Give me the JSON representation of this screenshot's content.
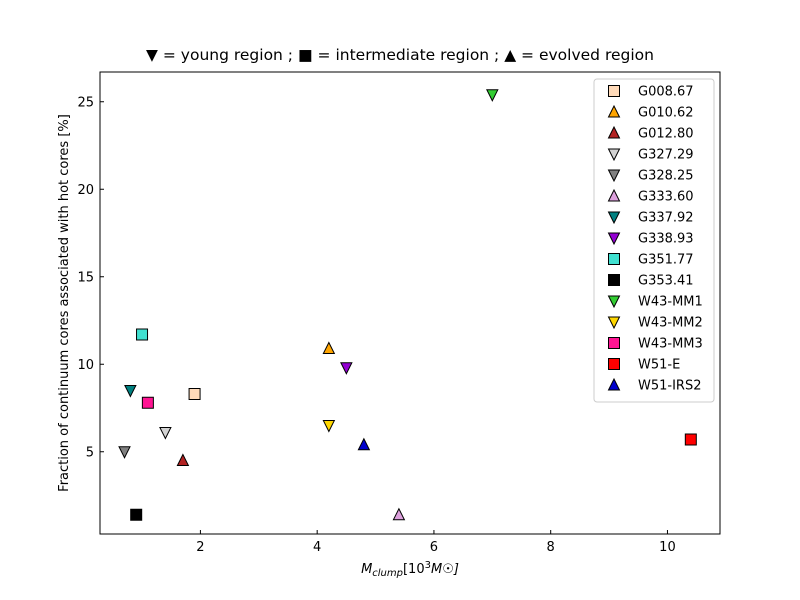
{
  "chart_data": {
    "type": "scatter",
    "title": "▼ = young region ; ■ = intermediate region ; ▲ = evolved region",
    "xlabel_main": "M",
    "xlabel_sub": "clump",
    "xlabel_unit": "[10",
    "xlabel_exp": "3",
    "xlabel_tail": "M☉]",
    "ylabel": "Fraction of continuum cores associated with hot cores [%]",
    "xlim": [
      0.28,
      10.9
    ],
    "ylim": [
      0.3,
      26.7
    ],
    "xticks": [
      2,
      4,
      6,
      8,
      10
    ],
    "yticks": [
      5,
      10,
      15,
      20,
      25
    ],
    "legend_position": "top-right",
    "grid": false,
    "series": [
      {
        "name": "G008.67",
        "marker": "square",
        "color": "#ffdab9",
        "x": 1.9,
        "y": 8.3
      },
      {
        "name": "G010.62",
        "marker": "triangle-up",
        "color": "#ffa500",
        "x": 4.2,
        "y": 10.9
      },
      {
        "name": "G012.80",
        "marker": "triangle-up",
        "color": "#b22222",
        "x": 1.7,
        "y": 4.5
      },
      {
        "name": "G327.29",
        "marker": "triangle-down",
        "color": "#d3d3d3",
        "x": 1.4,
        "y": 6.1
      },
      {
        "name": "G328.25",
        "marker": "triangle-down",
        "color": "#808080",
        "x": 0.7,
        "y": 5.0
      },
      {
        "name": "G333.60",
        "marker": "triangle-up",
        "color": "#dda0dd",
        "x": 5.4,
        "y": 1.4
      },
      {
        "name": "G337.92",
        "marker": "triangle-down",
        "color": "#008080",
        "x": 0.8,
        "y": 8.5
      },
      {
        "name": "G338.93",
        "marker": "triangle-down",
        "color": "#9400d3",
        "x": 4.5,
        "y": 9.8
      },
      {
        "name": "G351.77",
        "marker": "square",
        "color": "#40e0d0",
        "x": 1.0,
        "y": 11.7
      },
      {
        "name": "G353.41",
        "marker": "square",
        "color": "#000000",
        "x": 0.9,
        "y": 1.4
      },
      {
        "name": "W43-MM1",
        "marker": "triangle-down",
        "color": "#32cd32",
        "x": 7.0,
        "y": 25.4
      },
      {
        "name": "W43-MM2",
        "marker": "triangle-down",
        "color": "#ffd700",
        "x": 4.2,
        "y": 6.5
      },
      {
        "name": "W43-MM3",
        "marker": "square",
        "color": "#ff1493",
        "x": 1.1,
        "y": 7.8
      },
      {
        "name": "W51-E",
        "marker": "square",
        "color": "#ff0000",
        "x": 10.4,
        "y": 5.7
      },
      {
        "name": "W51-IRS2",
        "marker": "triangle-up",
        "color": "#0000cd",
        "x": 4.8,
        "y": 5.4
      }
    ]
  }
}
